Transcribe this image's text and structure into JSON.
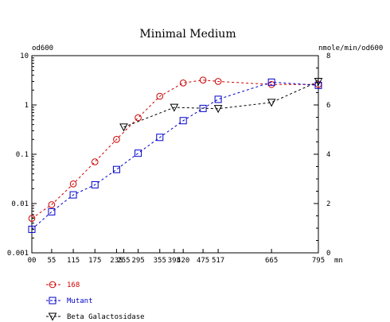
{
  "chart_data": {
    "type": "line",
    "title": "Minimal Medium",
    "left_axis_label": "od600",
    "right_axis_label": "nmole/min/od600",
    "x_unit": "mn",
    "x_range": [
      0,
      795
    ],
    "left_scale": "log",
    "left_ylim": [
      0.001,
      10
    ],
    "right_ylim": [
      0,
      8
    ],
    "x_ticks": [
      0,
      55,
      115,
      175,
      235,
      255,
      295,
      355,
      395,
      420,
      475,
      517,
      665,
      795
    ],
    "x_tick_labels": [
      "00",
      "55",
      "115",
      "175",
      "235",
      "255",
      "295",
      "355",
      "395",
      "420",
      "475",
      "517",
      "665",
      "795"
    ],
    "left_ticks": [
      0.001,
      0.01,
      0.1,
      1,
      10
    ],
    "left_tick_labels": [
      "0.001",
      "0.01",
      "0.1",
      "1",
      "10"
    ],
    "right_ticks": [
      0,
      2,
      4,
      6,
      8
    ],
    "right_tick_labels": [
      "0",
      "2",
      "4",
      "6",
      "8"
    ],
    "grid": false,
    "legend_position": "bottom-left",
    "series": [
      {
        "name": "168",
        "axis": "left",
        "marker": "circle",
        "color": "#cc0000",
        "x": [
          0,
          55,
          115,
          175,
          235,
          295,
          355,
          420,
          475,
          517,
          665,
          795
        ],
        "y": [
          0.005,
          0.0095,
          0.025,
          0.07,
          0.2,
          0.55,
          1.5,
          2.8,
          3.2,
          3.0,
          2.6,
          2.6
        ]
      },
      {
        "name": "Mutant",
        "axis": "left",
        "marker": "square",
        "color": "#0000cc",
        "x": [
          0,
          55,
          115,
          175,
          235,
          295,
          355,
          420,
          475,
          517,
          665,
          795
        ],
        "y": [
          0.003,
          0.0068,
          0.015,
          0.024,
          0.049,
          0.105,
          0.22,
          0.48,
          0.85,
          1.3,
          2.9,
          2.5
        ]
      },
      {
        "name": "Beta Galactosidase",
        "axis": "right",
        "marker": "triangle-down",
        "color": "#000000",
        "x": [
          255,
          395,
          517,
          665,
          795
        ],
        "y": [
          5.1,
          5.9,
          5.85,
          6.1,
          6.95
        ]
      }
    ]
  }
}
